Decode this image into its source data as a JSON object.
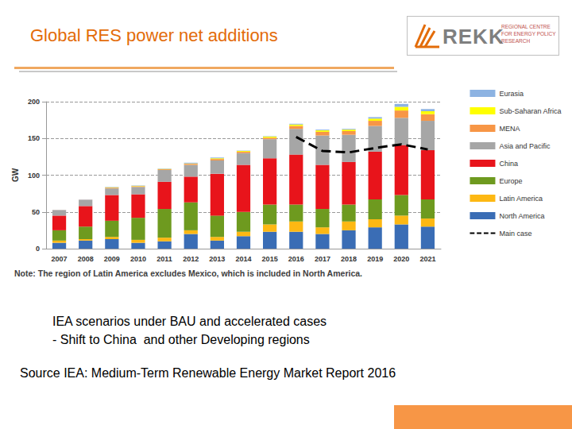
{
  "chart_data": {
    "type": "bar",
    "title": "Global RES power net additions",
    "y_label": "GW",
    "stacked": true,
    "grid": true,
    "legend": "right",
    "categories": [
      "2007",
      "2008",
      "2009",
      "2010",
      "2011",
      "2012",
      "2013",
      "2014",
      "2015",
      "2016",
      "2017",
      "2018",
      "2019",
      "2020",
      "2021"
    ],
    "ylim": [
      0,
      200
    ],
    "yticks": [
      0,
      50,
      100,
      150,
      200
    ],
    "series": [
      {
        "name": "North America",
        "color": "#3a6db5",
        "values": [
          8,
          11,
          13,
          8,
          10,
          20,
          11,
          17,
          23,
          23,
          20,
          25,
          29,
          33,
          30
        ]
      },
      {
        "name": "Latin America",
        "color": "#fdb813",
        "values": [
          3,
          2,
          3,
          4,
          5,
          5,
          5,
          6,
          10,
          14,
          9,
          12,
          11,
          12,
          11
        ]
      },
      {
        "name": "Europe",
        "color": "#6e9a1f",
        "values": [
          14,
          17,
          22,
          30,
          39,
          38,
          29,
          27,
          27,
          23,
          25,
          23,
          27,
          28,
          26
        ]
      },
      {
        "name": "China",
        "color": "#e8141b",
        "values": [
          20,
          28,
          35,
          32,
          37,
          35,
          57,
          64,
          63,
          68,
          60,
          58,
          65,
          68,
          67
        ]
      },
      {
        "name": "Asia and Pacific",
        "color": "#a6a6a6",
        "values": [
          7,
          8,
          9,
          10,
          16,
          16,
          18,
          16,
          26,
          35,
          40,
          37,
          35,
          37,
          40
        ]
      },
      {
        "name": "MENA",
        "color": "#f79646",
        "values": [
          0.5,
          0.5,
          1,
          1,
          1,
          1.5,
          2,
          2,
          2,
          4,
          5,
          5,
          7,
          10,
          9
        ]
      },
      {
        "name": "Sub-Saharan Africa",
        "color": "#ffff00",
        "values": [
          0,
          0,
          0.5,
          0.5,
          0.5,
          0.5,
          1,
          1,
          1.5,
          2,
          2,
          2,
          3,
          5,
          4
        ]
      },
      {
        "name": "Eurasia",
        "color": "#8db3e2",
        "values": [
          0.5,
          0.5,
          0.5,
          0.5,
          0.5,
          1,
          1,
          0.5,
          0.5,
          1,
          1,
          1,
          2,
          4,
          3
        ]
      },
      {
        "name": "Main case",
        "type": "line",
        "line_style": "dashed",
        "color": "#000000",
        "values": [
          null,
          null,
          null,
          null,
          null,
          null,
          null,
          null,
          null,
          152,
          133,
          131,
          137,
          142,
          135
        ]
      }
    ],
    "annotations": [
      "REKK",
      "REGIONAL CENTRE FOR ENERGY POLICY RESEARCH",
      "Note: The region of Latin America excludes Mexico, which is included in North America.",
      "IEA scenarios under BAU and accelerated cases",
      "- Shift to China  and other Developing regions",
      "Source IEA: Medium-Term Renewable Energy Market Report 2016"
    ]
  }
}
